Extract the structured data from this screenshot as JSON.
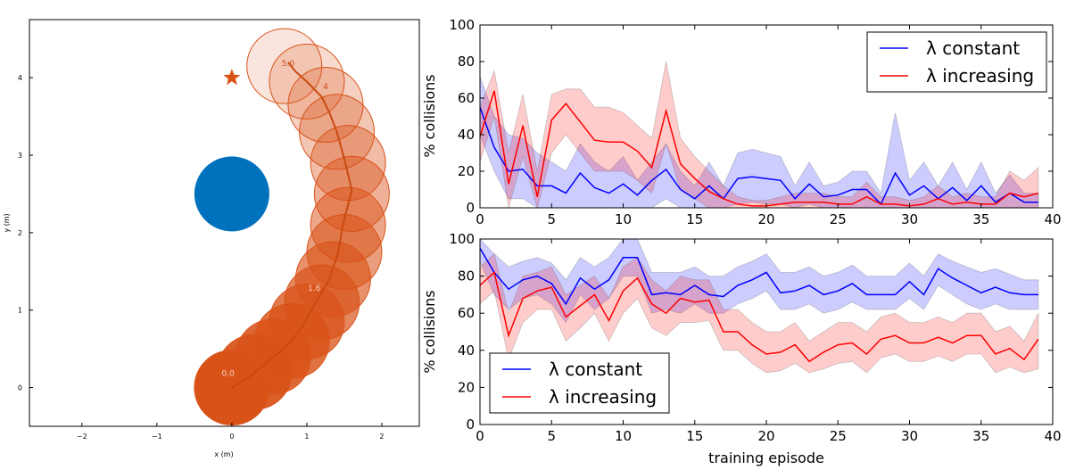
{
  "chart_data": [
    {
      "id": "trajectory",
      "type": "scatter",
      "xlabel": "x (m)",
      "ylabel": "y (m)",
      "xlim": [
        -2.7,
        2.5
      ],
      "ylim": [
        -0.5,
        4.75
      ],
      "xticks": [
        "−2",
        "−1",
        "0",
        "1",
        "2"
      ],
      "xtick_values": [
        -2,
        -1,
        0,
        1,
        2
      ],
      "yticks": [
        "0",
        "1",
        "2",
        "3",
        "4"
      ],
      "ytick_values": [
        0,
        1,
        2,
        3,
        4
      ],
      "obstacle": {
        "x": 0.0,
        "y": 2.5,
        "radius": 0.5,
        "color": "#0072bd"
      },
      "goal": {
        "x": 0.0,
        "y": 4.0,
        "marker": "star",
        "color": "#d95319"
      },
      "agent_radius": 0.5,
      "agent_color": "#d95319",
      "agent_positions": [
        {
          "x": 0.0,
          "y": 0.0
        },
        {
          "x": 0.3,
          "y": 0.2
        },
        {
          "x": 0.55,
          "y": 0.4
        },
        {
          "x": 0.8,
          "y": 0.6
        },
        {
          "x": 1.0,
          "y": 0.85
        },
        {
          "x": 1.2,
          "y": 1.1
        },
        {
          "x": 1.35,
          "y": 1.4
        },
        {
          "x": 1.5,
          "y": 1.75
        },
        {
          "x": 1.55,
          "y": 2.1
        },
        {
          "x": 1.6,
          "y": 2.5
        },
        {
          "x": 1.55,
          "y": 2.9
        },
        {
          "x": 1.4,
          "y": 3.3
        },
        {
          "x": 1.25,
          "y": 3.65
        },
        {
          "x": 1.0,
          "y": 3.95
        },
        {
          "x": 0.7,
          "y": 4.15
        }
      ],
      "path": [
        {
          "x": 0.0,
          "y": 0.0
        },
        {
          "x": 0.25,
          "y": 0.15
        },
        {
          "x": 0.5,
          "y": 0.35
        },
        {
          "x": 0.75,
          "y": 0.55
        },
        {
          "x": 0.95,
          "y": 0.8
        },
        {
          "x": 1.12,
          "y": 1.1
        },
        {
          "x": 1.3,
          "y": 1.4
        },
        {
          "x": 1.42,
          "y": 1.75
        },
        {
          "x": 1.48,
          "y": 2.1
        },
        {
          "x": 1.6,
          "y": 2.55
        },
        {
          "x": 1.5,
          "y": 2.95
        },
        {
          "x": 1.4,
          "y": 3.3
        },
        {
          "x": 1.3,
          "y": 3.55
        },
        {
          "x": 1.2,
          "y": 3.75
        },
        {
          "x": 1.0,
          "y": 3.95
        },
        {
          "x": 0.85,
          "y": 4.08
        },
        {
          "x": 0.75,
          "y": 4.2
        }
      ],
      "time_labels": [
        {
          "text": "0.0",
          "x": -0.05,
          "y": 0.15
        },
        {
          "text": "1.6",
          "x": 1.1,
          "y": 1.25
        },
        {
          "text": "5.0",
          "x": 0.75,
          "y": 4.15
        },
        {
          "text": "4",
          "x": 1.25,
          "y": 3.85
        }
      ]
    },
    {
      "id": "collisions-top",
      "type": "line",
      "ylabel": "% collisions",
      "xlabel": "",
      "xlim": [
        0,
        40
      ],
      "ylim": [
        0,
        100
      ],
      "xticks": [
        "0",
        "5",
        "10",
        "15",
        "20",
        "25",
        "30",
        "35",
        "40"
      ],
      "xtick_values": [
        0,
        5,
        10,
        15,
        20,
        25,
        30,
        35,
        40
      ],
      "yticks": [
        "0",
        "20",
        "40",
        "60",
        "80",
        "100"
      ],
      "ytick_values": [
        0,
        20,
        40,
        60,
        80,
        100
      ],
      "legend_position": "top-right",
      "x": [
        0,
        1,
        2,
        3,
        4,
        5,
        6,
        7,
        8,
        9,
        10,
        11,
        12,
        13,
        14,
        15,
        16,
        17,
        18,
        19,
        20,
        21,
        22,
        23,
        24,
        25,
        26,
        27,
        28,
        29,
        30,
        31,
        32,
        33,
        34,
        35,
        36,
        37,
        38,
        39
      ],
      "series": [
        {
          "name": "λ constant",
          "color": "#0000ff",
          "values": [
            55,
            33,
            20,
            21,
            12,
            12,
            8,
            19,
            11,
            8,
            13,
            7,
            15,
            21,
            10,
            5,
            12,
            5,
            16,
            17,
            16,
            15,
            5,
            13,
            6,
            7,
            10,
            10,
            2,
            19,
            7,
            12,
            5,
            11,
            4,
            12,
            3,
            8,
            3,
            3
          ],
          "lower": [
            40,
            20,
            5,
            5,
            0,
            0,
            0,
            0,
            0,
            0,
            0,
            0,
            0,
            5,
            0,
            0,
            0,
            0,
            2,
            3,
            2,
            2,
            0,
            2,
            0,
            0,
            0,
            0,
            0,
            0,
            0,
            0,
            0,
            0,
            0,
            0,
            0,
            0,
            0,
            0
          ],
          "upper": [
            72,
            50,
            40,
            38,
            30,
            25,
            20,
            35,
            25,
            20,
            28,
            15,
            25,
            35,
            20,
            12,
            25,
            12,
            30,
            32,
            30,
            28,
            12,
            25,
            12,
            14,
            20,
            20,
            8,
            52,
            15,
            25,
            12,
            25,
            10,
            25,
            8,
            18,
            8,
            8
          ]
        },
        {
          "name": "λ increasing",
          "color": "#ff0000",
          "values": [
            39,
            64,
            13,
            45,
            6,
            48,
            57,
            47,
            37,
            36,
            36,
            31,
            22,
            53,
            24,
            16,
            9,
            5,
            2,
            1,
            1,
            2,
            3,
            3,
            3,
            2,
            2,
            6,
            2,
            2,
            1,
            2,
            5,
            2,
            3,
            2,
            2,
            8,
            6,
            8
          ],
          "lower": [
            25,
            50,
            0,
            28,
            0,
            30,
            40,
            30,
            20,
            20,
            20,
            15,
            8,
            35,
            10,
            5,
            0,
            0,
            0,
            0,
            0,
            0,
            0,
            0,
            0,
            0,
            0,
            0,
            0,
            0,
            0,
            0,
            0,
            0,
            0,
            0,
            0,
            0,
            0,
            0
          ],
          "upper": [
            55,
            75,
            30,
            62,
            20,
            62,
            65,
            65,
            55,
            55,
            52,
            45,
            38,
            80,
            38,
            28,
            20,
            12,
            6,
            4,
            4,
            6,
            8,
            8,
            8,
            6,
            6,
            14,
            6,
            6,
            4,
            6,
            12,
            6,
            8,
            6,
            6,
            20,
            15,
            22
          ]
        }
      ]
    },
    {
      "id": "collisions-bottom",
      "type": "line",
      "ylabel": "% collisions",
      "xlabel": "training episode",
      "xlim": [
        0,
        40
      ],
      "ylim": [
        0,
        100
      ],
      "xticks": [
        "0",
        "5",
        "10",
        "15",
        "20",
        "25",
        "30",
        "35",
        "40"
      ],
      "xtick_values": [
        0,
        5,
        10,
        15,
        20,
        25,
        30,
        35,
        40
      ],
      "yticks": [
        "0",
        "20",
        "40",
        "60",
        "80",
        "100"
      ],
      "ytick_values": [
        0,
        20,
        40,
        60,
        80,
        100
      ],
      "legend_position": "bottom-left",
      "x": [
        0,
        1,
        2,
        3,
        4,
        5,
        6,
        7,
        8,
        9,
        10,
        11,
        12,
        13,
        14,
        15,
        16,
        17,
        18,
        19,
        20,
        21,
        22,
        23,
        24,
        25,
        26,
        27,
        28,
        29,
        30,
        31,
        32,
        33,
        34,
        35,
        36,
        37,
        38,
        39
      ],
      "series": [
        {
          "name": "λ constant",
          "color": "#0000ff",
          "values": [
            95,
            82,
            73,
            78,
            80,
            76,
            65,
            79,
            73,
            78,
            90,
            90,
            70,
            71,
            70,
            75,
            70,
            69,
            75,
            78,
            82,
            71,
            72,
            75,
            70,
            72,
            76,
            70,
            70,
            70,
            77,
            70,
            84,
            79,
            75,
            71,
            74,
            71,
            70,
            70
          ],
          "lower": [
            88,
            70,
            62,
            68,
            70,
            65,
            55,
            70,
            62,
            68,
            80,
            80,
            60,
            62,
            60,
            65,
            60,
            60,
            65,
            68,
            72,
            62,
            62,
            65,
            60,
            62,
            66,
            62,
            62,
            62,
            68,
            62,
            75,
            70,
            65,
            62,
            65,
            62,
            62,
            62
          ],
          "upper": [
            100,
            92,
            85,
            88,
            90,
            87,
            78,
            90,
            85,
            90,
            100,
            100,
            82,
            82,
            82,
            85,
            80,
            80,
            85,
            88,
            92,
            82,
            82,
            85,
            80,
            82,
            86,
            80,
            80,
            80,
            87,
            80,
            92,
            88,
            85,
            82,
            84,
            81,
            78,
            78
          ]
        },
        {
          "name": "λ increasing",
          "color": "#ff0000",
          "values": [
            75,
            82,
            48,
            68,
            72,
            74,
            58,
            64,
            70,
            56,
            72,
            79,
            65,
            60,
            68,
            66,
            67,
            50,
            50,
            43,
            38,
            39,
            43,
            34,
            39,
            43,
            44,
            38,
            46,
            48,
            44,
            44,
            47,
            44,
            48,
            48,
            38,
            41,
            35,
            46
          ],
          "lower": [
            65,
            72,
            35,
            55,
            62,
            62,
            45,
            52,
            60,
            45,
            60,
            68,
            52,
            48,
            55,
            55,
            56,
            40,
            40,
            33,
            28,
            29,
            33,
            28,
            30,
            33,
            34,
            28,
            36,
            38,
            34,
            34,
            37,
            34,
            38,
            38,
            28,
            31,
            28,
            30
          ],
          "upper": [
            85,
            92,
            60,
            80,
            82,
            85,
            70,
            75,
            80,
            68,
            85,
            90,
            78,
            72,
            80,
            78,
            78,
            62,
            62,
            55,
            50,
            50,
            55,
            45,
            50,
            55,
            55,
            50,
            58,
            60,
            55,
            55,
            58,
            55,
            60,
            60,
            50,
            53,
            45,
            60
          ]
        }
      ]
    }
  ]
}
